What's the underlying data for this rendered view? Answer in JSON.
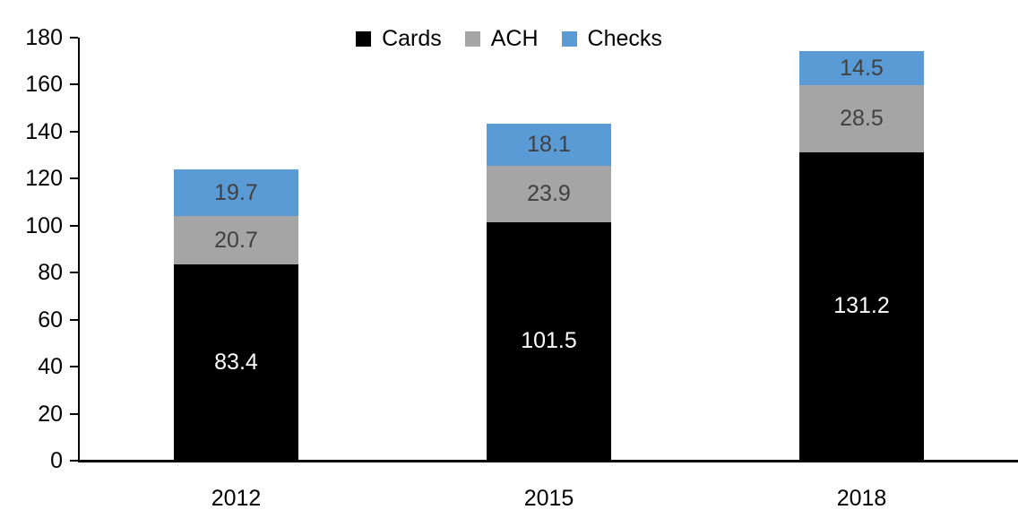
{
  "chart_data": {
    "type": "bar",
    "stacked": true,
    "title": "",
    "xlabel": "",
    "ylabel": "",
    "categories": [
      "2012",
      "2015",
      "2018"
    ],
    "series": [
      {
        "name": "Cards",
        "color": "#000000",
        "label_color": "#FFFFFF",
        "values": [
          83.4,
          101.5,
          131.2
        ]
      },
      {
        "name": "ACH",
        "color": "#A5A5A5",
        "label_color": "#404040",
        "values": [
          20.7,
          23.9,
          28.5
        ]
      },
      {
        "name": "Checks",
        "color": "#5B9BD5",
        "label_color": "#404040",
        "values": [
          19.7,
          18.1,
          14.5
        ]
      }
    ],
    "totals": [
      123.8,
      143.5,
      174.2
    ],
    "ylim": [
      0,
      180
    ],
    "yticks": [
      0,
      20,
      40,
      60,
      80,
      100,
      120,
      140,
      160,
      180
    ],
    "grid": false,
    "legend_position": "top",
    "legend_entries": [
      "Cards",
      "ACH",
      "Checks"
    ],
    "axis_color": "#000000",
    "data_label_decimals": 1
  }
}
